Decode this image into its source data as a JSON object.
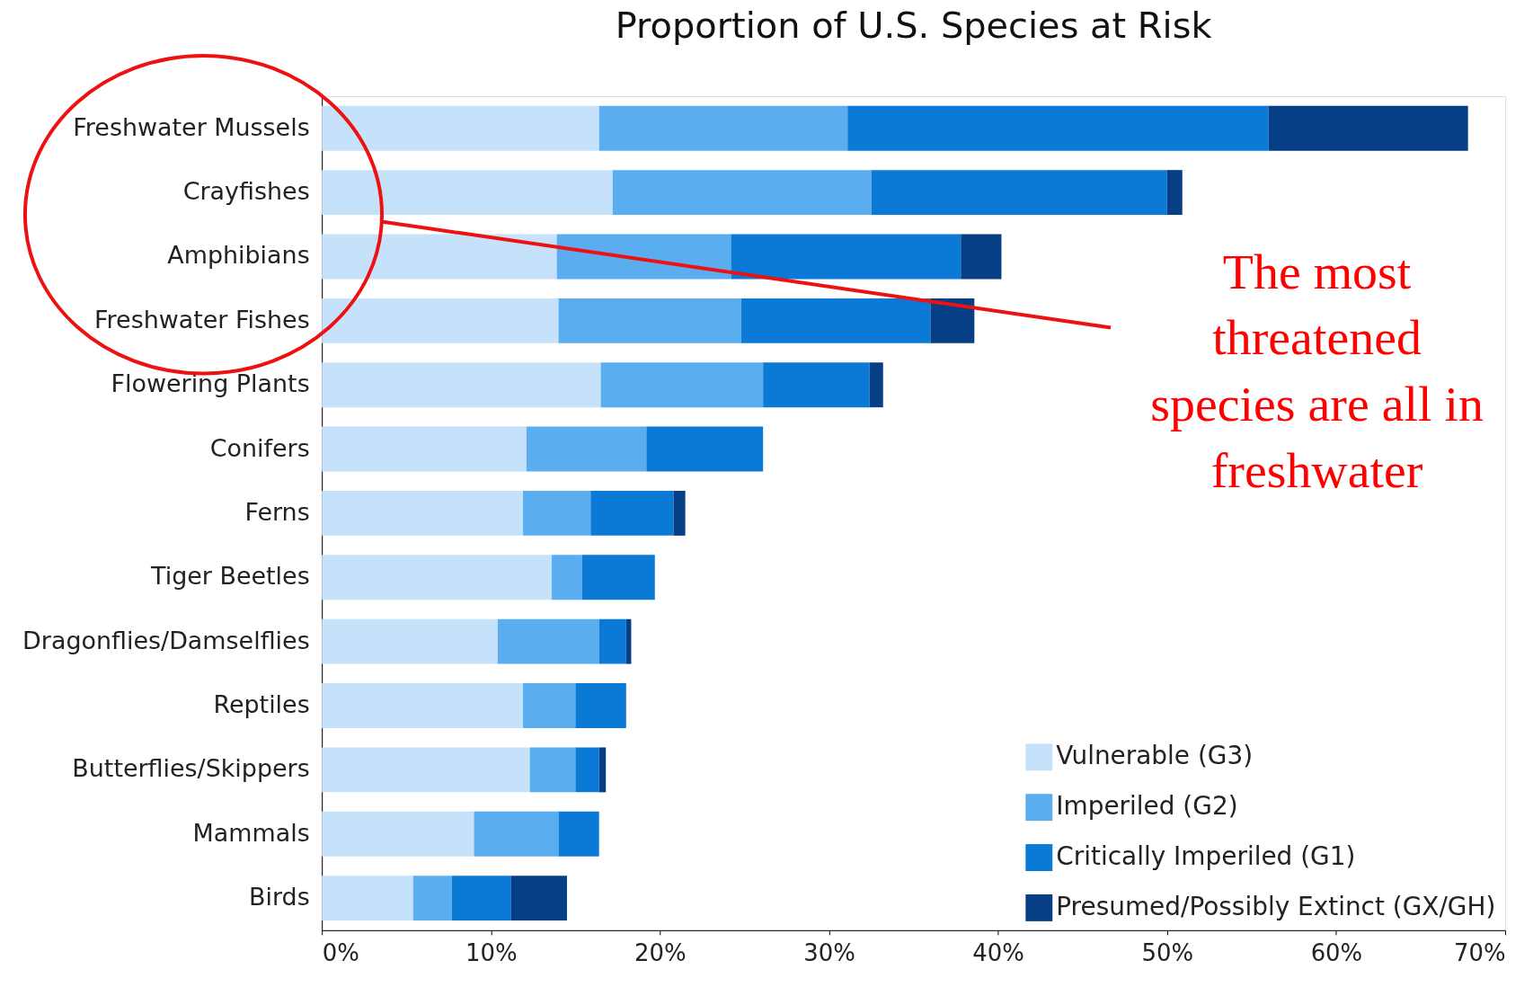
{
  "chart_data": {
    "type": "bar",
    "orientation": "horizontal",
    "stacked": true,
    "title": "Proportion of U.S. Species at Risk",
    "categories": [
      "Freshwater Mussels",
      "Crayfishes",
      "Amphibians",
      "Freshwater Fishes",
      "Flowering Plants",
      "Conifers",
      "Ferns",
      "Tiger Beetles",
      "Dragonflies/Damselflies",
      "Reptiles",
      "Butterflies/Skippers",
      "Mammals",
      "Birds"
    ],
    "series": [
      {
        "name": "Vulnerable (G3)",
        "color": "#c6e2fa",
        "values": [
          16.4,
          17.2,
          13.9,
          14.0,
          16.5,
          12.1,
          11.9,
          13.6,
          10.4,
          11.9,
          12.3,
          9.0,
          5.4
        ]
      },
      {
        "name": "Imperiled (G2)",
        "color": "#5aaef0",
        "values": [
          14.7,
          15.3,
          10.3,
          10.8,
          9.6,
          7.1,
          4.0,
          1.8,
          6.0,
          3.1,
          2.7,
          5.0,
          2.3
        ]
      },
      {
        "name": "Critically Imperiled (G1)",
        "color": "#0a7ad6",
        "values": [
          24.9,
          17.5,
          13.6,
          11.2,
          6.3,
          6.9,
          4.9,
          4.3,
          1.6,
          3.0,
          1.4,
          2.4,
          3.5
        ]
      },
      {
        "name": "Presumed/Possibly Extinct (GX/GH)",
        "color": "#063f85",
        "values": [
          11.8,
          0.9,
          2.4,
          2.6,
          0.8,
          null,
          0.7,
          null,
          0.3,
          null,
          0.4,
          null,
          3.3
        ]
      }
    ],
    "xlim": [
      0,
      70
    ],
    "xticks": [
      {
        "value": 0,
        "label": "0%"
      },
      {
        "value": 10,
        "label": "10%"
      },
      {
        "value": 20,
        "label": "20%"
      },
      {
        "value": 30,
        "label": "30%"
      },
      {
        "value": 40,
        "label": "40%"
      },
      {
        "value": 50,
        "label": "50%"
      },
      {
        "value": 60,
        "label": "60%"
      },
      {
        "value": 70,
        "label": "70%"
      }
    ],
    "grid": false,
    "legend": "bottom right",
    "annotations": [
      "The most\nthreatened\nspecies are all in\nfreshwater"
    ]
  }
}
